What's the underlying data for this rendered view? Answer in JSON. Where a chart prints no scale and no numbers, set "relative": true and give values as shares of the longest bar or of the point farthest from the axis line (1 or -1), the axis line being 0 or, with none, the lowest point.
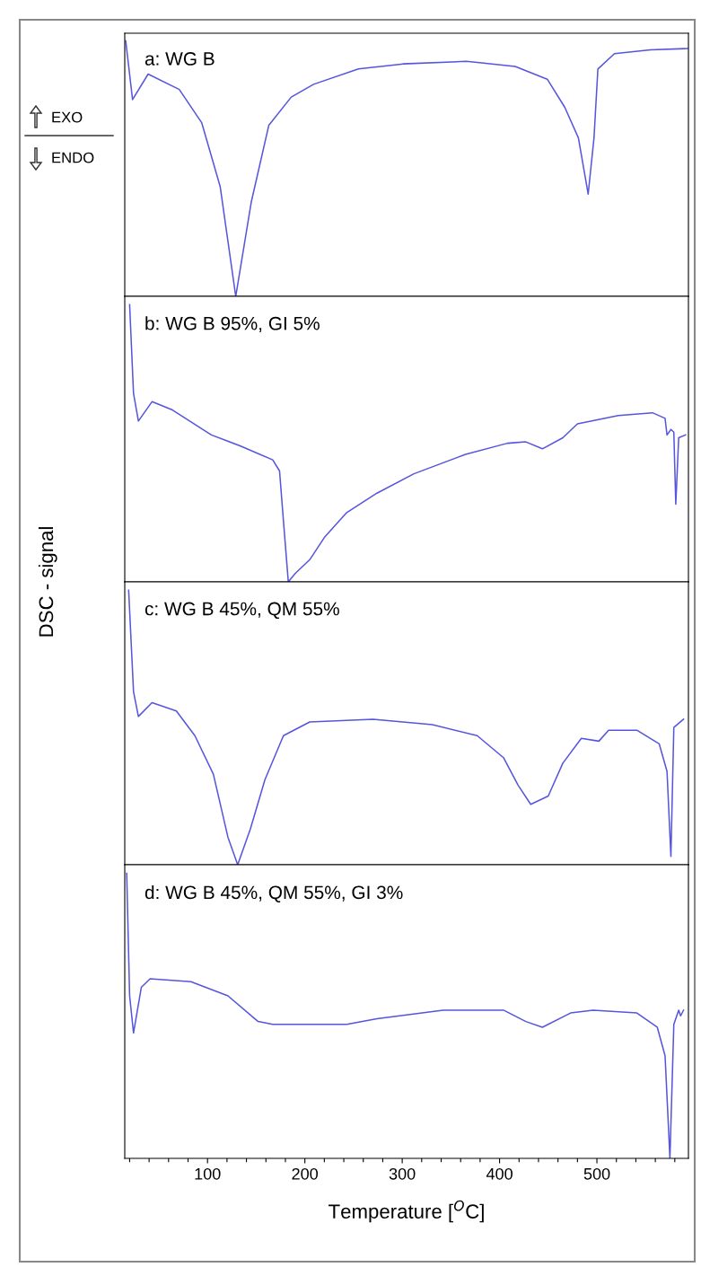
{
  "chart_data": [
    {
      "type": "line",
      "title": "a: WG B",
      "relative": true,
      "xlim": [
        15,
        594
      ],
      "tick_labels": false,
      "annotations": [
        "EXO",
        "ENDO"
      ],
      "series": [
        {
          "color": "#5555dd",
          "x": [
            16,
            23,
            39,
            71,
            94,
            113,
            129,
            145,
            163,
            186,
            209,
            255,
            301,
            366,
            416,
            449,
            467,
            481,
            491,
            497,
            501,
            518,
            555,
            593
          ],
          "values": [
            1.0,
            0.77,
            0.87,
            0.81,
            0.68,
            0.43,
            0,
            0.37,
            0.67,
            0.78,
            0.83,
            0.89,
            0.91,
            0.92,
            0.9,
            0.85,
            0.74,
            0.62,
            0.4,
            0.62,
            0.89,
            0.95,
            0.965,
            0.97
          ]
        }
      ]
    },
    {
      "type": "line",
      "title": "b: WG B 95%, GI 5%",
      "ylabel": "DSC - signal",
      "relative": true,
      "xlim": [
        15,
        594
      ],
      "tick_labels": false,
      "series": [
        {
          "color": "#5555dd",
          "x": [
            20,
            24,
            29,
            43,
            64,
            104,
            134,
            167,
            174,
            178,
            183,
            190,
            205,
            220,
            243,
            274,
            312,
            365,
            408,
            427,
            444,
            465,
            480,
            522,
            557,
            570,
            572,
            576,
            579,
            581,
            584,
            591
          ],
          "values": [
            1.0,
            0.68,
            0.58,
            0.65,
            0.62,
            0.53,
            0.49,
            0.44,
            0.4,
            0.22,
            0,
            0.03,
            0.08,
            0.16,
            0.25,
            0.32,
            0.39,
            0.46,
            0.5,
            0.505,
            0.48,
            0.52,
            0.57,
            0.6,
            0.61,
            0.59,
            0.53,
            0.55,
            0.54,
            0.28,
            0.52,
            0.53
          ]
        }
      ]
    },
    {
      "type": "line",
      "title": "c: WG B 45%, QM 55%",
      "relative": true,
      "xlim": [
        15,
        594
      ],
      "tick_labels": false,
      "series": [
        {
          "color": "#5555dd",
          "x": [
            19,
            24,
            29,
            43,
            68,
            87,
            106,
            121,
            131,
            144,
            159,
            178,
            205,
            270,
            331,
            377,
            404,
            419,
            432,
            450,
            465,
            484,
            502,
            512,
            541,
            564,
            572,
            576,
            579,
            589
          ],
          "values": [
            1.0,
            0.63,
            0.54,
            0.59,
            0.56,
            0.47,
            0.33,
            0.1,
            0,
            0.13,
            0.31,
            0.47,
            0.52,
            0.53,
            0.51,
            0.47,
            0.39,
            0.29,
            0.22,
            0.25,
            0.37,
            0.46,
            0.45,
            0.49,
            0.49,
            0.44,
            0.34,
            0.03,
            0.5,
            0.53
          ]
        }
      ]
    },
    {
      "type": "line",
      "title": "d: WG B 45%, QM 55%, GI 3%",
      "xlabel": "Temperature [$^{O}$C]",
      "relative": true,
      "xlim": [
        15,
        594
      ],
      "tick_labels": "x",
      "xticks": [
        {
          "value": 20,
          "label": null
        },
        {
          "value": 40,
          "label": null
        },
        {
          "value": 60,
          "label": null
        },
        {
          "value": 80,
          "label": null
        },
        100,
        {
          "value": 120,
          "label": null
        },
        {
          "value": 140,
          "label": null
        },
        {
          "value": 160,
          "label": null
        },
        {
          "value": 180,
          "label": null
        },
        200,
        {
          "value": 220,
          "label": null
        },
        {
          "value": 240,
          "label": null
        },
        {
          "value": 260,
          "label": null
        },
        {
          "value": 280,
          "label": null
        },
        300,
        {
          "value": 320,
          "label": null
        },
        {
          "value": 340,
          "label": null
        },
        {
          "value": 360,
          "label": null
        },
        {
          "value": 380,
          "label": null
        },
        400,
        {
          "value": 420,
          "label": null
        },
        {
          "value": 440,
          "label": null
        },
        {
          "value": 460,
          "label": null
        },
        {
          "value": 480,
          "label": null
        },
        500,
        {
          "value": 520,
          "label": null
        },
        {
          "value": 540,
          "label": null
        },
        {
          "value": 560,
          "label": null
        },
        {
          "value": 580,
          "label": null
        }
      ],
      "series": [
        {
          "color": "#5555dd",
          "x": [
            17,
            20,
            24,
            32,
            41,
            83,
            121,
            152,
            167,
            243,
            274,
            342,
            404,
            427,
            444,
            473,
            496,
            541,
            562,
            570,
            575,
            579,
            584,
            586,
            589
          ],
          "values": [
            1.0,
            0.57,
            0.44,
            0.6,
            0.63,
            0.62,
            0.57,
            0.48,
            0.47,
            0.47,
            0.49,
            0.52,
            0.52,
            0.48,
            0.46,
            0.51,
            0.52,
            0.51,
            0.46,
            0.36,
            0,
            0.47,
            0.52,
            0.5,
            0.52
          ]
        }
      ]
    }
  ]
}
